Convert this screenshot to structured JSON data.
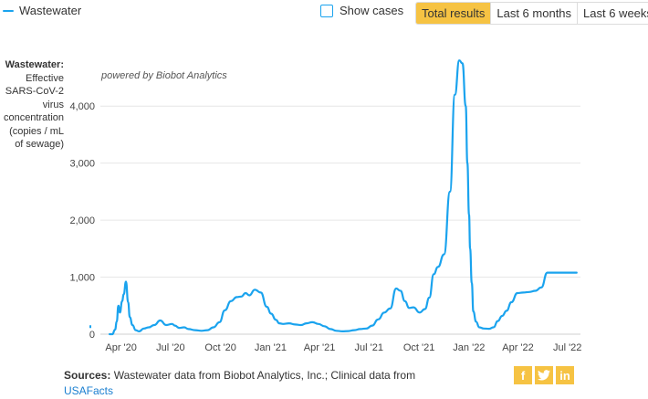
{
  "legend": {
    "series_label": "Wastewater"
  },
  "show_cases_label": "Show cases",
  "range_buttons": [
    "Total results",
    "Last 6 months",
    "Last 6 weeks"
  ],
  "active_range": "Total results",
  "ylabel": {
    "bold": "Wastewater:",
    "rest": "Effective SARS-CoV-2 virus concentration (copies / mL of sewage)"
  },
  "powered_by": "powered by Biobot Analytics",
  "sources": {
    "label": "Sources:",
    "text": "Wastewater data from Biobot Analytics, Inc.; Clinical data from",
    "link": "USAFacts"
  },
  "share": {
    "facebook": "f",
    "twitter": "t",
    "linkedin": "in"
  },
  "colors": {
    "series": "#1aa3ee",
    "accent": "#f6c343",
    "grid": "#e6e6e6"
  },
  "chart_data": {
    "type": "line",
    "yticks": [
      "0",
      "1,000",
      "2,000",
      "3,000",
      "4,000"
    ],
    "ylim": [
      0,
      4900
    ],
    "xticks": [
      "Apr '20",
      "Jul '20",
      "Oct '20",
      "Jan '21",
      "Apr '21",
      "Jul '21",
      "Oct '21",
      "Jan '22",
      "Apr '22",
      "Jul '22"
    ],
    "grid": true,
    "series": [
      {
        "name": "Wastewater",
        "x": [
          "2020-03-11",
          "2020-03-16",
          "2020-03-21",
          "2020-03-24",
          "2020-03-27",
          "2020-03-30",
          "2020-04-03",
          "2020-04-06",
          "2020-04-10",
          "2020-04-14",
          "2020-04-17",
          "2020-04-22",
          "2020-04-28",
          "2020-05-04",
          "2020-05-13",
          "2020-05-22",
          "2020-06-01",
          "2020-06-12",
          "2020-06-23",
          "2020-07-04",
          "2020-07-09",
          "2020-07-17",
          "2020-07-26",
          "2020-08-03",
          "2020-08-15",
          "2020-08-27",
          "2020-09-07",
          "2020-09-18",
          "2020-09-29",
          "2020-10-09",
          "2020-10-20",
          "2020-10-31",
          "2020-11-08",
          "2020-11-16",
          "2020-11-23",
          "2020-12-03",
          "2020-12-14",
          "2020-12-25",
          "2021-01-02",
          "2021-01-11",
          "2021-01-17",
          "2021-01-24",
          "2021-02-04",
          "2021-02-15",
          "2021-02-26",
          "2021-03-08",
          "2021-03-19",
          "2021-03-30",
          "2021-04-10",
          "2021-04-21",
          "2021-05-02",
          "2021-05-13",
          "2021-05-24",
          "2021-06-04",
          "2021-06-15",
          "2021-06-26",
          "2021-07-07",
          "2021-07-18",
          "2021-07-29",
          "2021-08-09",
          "2021-08-20",
          "2021-08-28",
          "2021-09-05",
          "2021-09-13",
          "2021-09-21",
          "2021-10-02",
          "2021-10-12",
          "2021-10-20",
          "2021-10-28",
          "2021-11-05",
          "2021-11-16",
          "2021-11-27",
          "2021-12-06",
          "2021-12-14",
          "2021-12-20",
          "2021-12-26",
          "2021-12-29",
          "2022-01-01",
          "2022-01-03",
          "2022-01-06",
          "2022-01-09",
          "2022-01-14",
          "2022-01-20",
          "2022-01-28",
          "2022-02-07",
          "2022-02-15",
          "2022-02-23",
          "2022-03-03",
          "2022-03-11",
          "2022-03-20",
          "2022-03-31",
          "2022-04-11",
          "2022-04-22",
          "2022-05-03",
          "2022-05-14",
          "2022-05-25",
          "2022-06-05",
          "2022-06-16",
          "2022-06-27",
          "2022-07-05",
          "2022-07-12",
          "2022-07-18"
        ],
        "y": [
          0,
          0,
          80,
          220,
          500,
          380,
          580,
          700,
          920,
          560,
          300,
          160,
          70,
          50,
          100,
          120,
          160,
          240,
          160,
          180,
          150,
          110,
          120,
          90,
          70,
          60,
          70,
          120,
          210,
          420,
          580,
          650,
          660,
          720,
          680,
          780,
          730,
          480,
          360,
          250,
          190,
          180,
          190,
          170,
          160,
          190,
          210,
          180,
          140,
          90,
          60,
          50,
          55,
          70,
          90,
          100,
          150,
          260,
          380,
          450,
          800,
          760,
          580,
          460,
          470,
          380,
          440,
          640,
          1050,
          1180,
          1400,
          2500,
          4200,
          4800,
          4750,
          4000,
          3000,
          2100,
          1500,
          900,
          400,
          220,
          120,
          100,
          95,
          120,
          230,
          320,
          410,
          560,
          720,
          730,
          740,
          760,
          820,
          1080,
          1080,
          1080,
          1080,
          1080,
          1080,
          1080
        ]
      }
    ]
  }
}
